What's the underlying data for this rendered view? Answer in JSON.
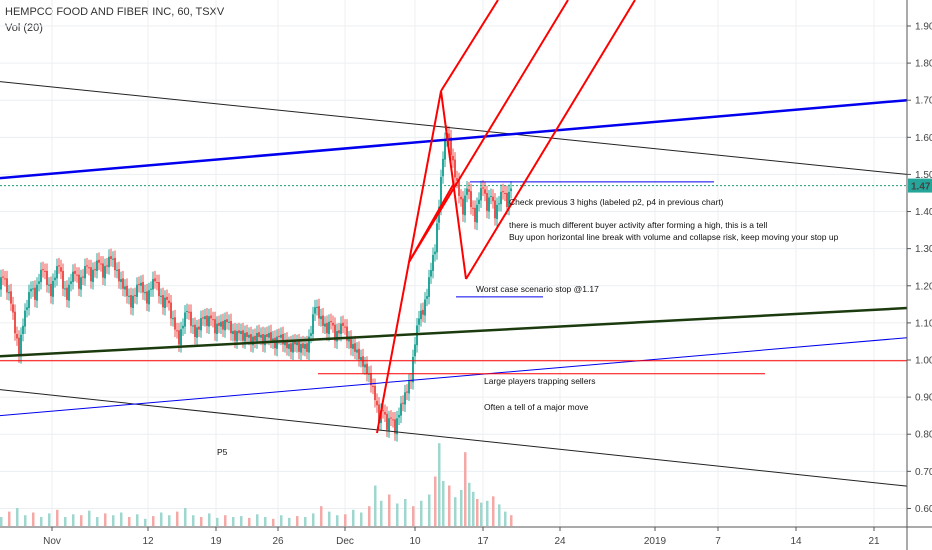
{
  "header": {
    "symbol_line": "HEMPCO FOOD AND FIBER INC, 60, TSXV",
    "indicator_line": "Vol (20)"
  },
  "chart_data": {
    "type": "candlestick",
    "ylim": [
      0.55,
      1.97
    ],
    "y_ticks": [
      "1.90",
      "1.80",
      "1.70",
      "1.60",
      "1.50",
      "1.40",
      "1.30",
      "1.20",
      "1.10",
      "1.00",
      "0.90",
      "0.80",
      "0.70",
      "0.60"
    ],
    "y_tick_values": [
      1.9,
      1.8,
      1.7,
      1.6,
      1.5,
      1.4,
      1.3,
      1.2,
      1.1,
      1.0,
      0.9,
      0.8,
      0.7,
      0.6
    ],
    "x_ticks": [
      "Nov",
      "12",
      "19",
      "26",
      "Dec",
      "10",
      "17",
      "24",
      "2019",
      "7",
      "14",
      "21"
    ],
    "last_price": "1.47",
    "last_price_value": 1.47,
    "price_path": [
      [
        0,
        1.2
      ],
      [
        4,
        1.23
      ],
      [
        8,
        1.19
      ],
      [
        12,
        1.16
      ],
      [
        16,
        1.08
      ],
      [
        20,
        1.02
      ],
      [
        24,
        1.1
      ],
      [
        28,
        1.15
      ],
      [
        32,
        1.2
      ],
      [
        36,
        1.17
      ],
      [
        40,
        1.22
      ],
      [
        44,
        1.25
      ],
      [
        48,
        1.21
      ],
      [
        52,
        1.18
      ],
      [
        56,
        1.23
      ],
      [
        60,
        1.26
      ],
      [
        64,
        1.2
      ],
      [
        68,
        1.17
      ],
      [
        72,
        1.22
      ],
      [
        76,
        1.24
      ],
      [
        80,
        1.2
      ],
      [
        84,
        1.23
      ],
      [
        88,
        1.26
      ],
      [
        92,
        1.22
      ],
      [
        96,
        1.25
      ],
      [
        100,
        1.27
      ],
      [
        104,
        1.23
      ],
      [
        108,
        1.26
      ],
      [
        112,
        1.28
      ],
      [
        116,
        1.25
      ],
      [
        120,
        1.22
      ],
      [
        124,
        1.2
      ],
      [
        128,
        1.18
      ],
      [
        132,
        1.15
      ],
      [
        136,
        1.18
      ],
      [
        140,
        1.21
      ],
      [
        144,
        1.19
      ],
      [
        148,
        1.16
      ],
      [
        152,
        1.2
      ],
      [
        156,
        1.22
      ],
      [
        160,
        1.18
      ],
      [
        164,
        1.15
      ],
      [
        168,
        1.17
      ],
      [
        172,
        1.12
      ],
      [
        176,
        1.09
      ],
      [
        180,
        1.05
      ],
      [
        184,
        1.1
      ],
      [
        188,
        1.14
      ],
      [
        192,
        1.1
      ],
      [
        196,
        1.07
      ],
      [
        200,
        1.09
      ],
      [
        204,
        1.12
      ],
      [
        208,
        1.1
      ],
      [
        212,
        1.12
      ],
      [
        216,
        1.08
      ],
      [
        220,
        1.1
      ],
      [
        224,
        1.09
      ],
      [
        228,
        1.11
      ],
      [
        232,
        1.08
      ],
      [
        236,
        1.06
      ],
      [
        240,
        1.08
      ],
      [
        244,
        1.06
      ],
      [
        248,
        1.07
      ],
      [
        252,
        1.05
      ],
      [
        256,
        1.06
      ],
      [
        260,
        1.07
      ],
      [
        264,
        1.05
      ],
      [
        268,
        1.07
      ],
      [
        272,
        1.06
      ],
      [
        276,
        1.04
      ],
      [
        280,
        1.07
      ],
      [
        284,
        1.05
      ],
      [
        288,
        1.04
      ],
      [
        292,
        1.03
      ],
      [
        296,
        1.05
      ],
      [
        300,
        1.03
      ],
      [
        304,
        1.04
      ],
      [
        308,
        1.03
      ],
      [
        312,
        1.08
      ],
      [
        316,
        1.15
      ],
      [
        320,
        1.12
      ],
      [
        324,
        1.1
      ],
      [
        328,
        1.08
      ],
      [
        332,
        1.11
      ],
      [
        336,
        1.06
      ],
      [
        340,
        1.08
      ],
      [
        344,
        1.1
      ],
      [
        348,
        1.06
      ],
      [
        352,
        1.04
      ],
      [
        356,
        1.03
      ],
      [
        360,
        1.01
      ],
      [
        364,
        0.99
      ],
      [
        368,
        0.97
      ],
      [
        372,
        0.94
      ],
      [
        376,
        0.9
      ],
      [
        380,
        0.84
      ],
      [
        384,
        0.87
      ],
      [
        388,
        0.82
      ],
      [
        392,
        0.85
      ],
      [
        396,
        0.81
      ],
      [
        400,
        0.86
      ],
      [
        404,
        0.89
      ],
      [
        408,
        0.92
      ],
      [
        412,
        0.95
      ],
      [
        416,
        1.05
      ],
      [
        420,
        1.12
      ],
      [
        424,
        1.13
      ],
      [
        428,
        1.18
      ],
      [
        432,
        1.25
      ],
      [
        436,
        1.3
      ],
      [
        440,
        1.42
      ],
      [
        444,
        1.55
      ],
      [
        448,
        1.62
      ],
      [
        452,
        1.56
      ],
      [
        456,
        1.5
      ],
      [
        460,
        1.45
      ],
      [
        464,
        1.4
      ],
      [
        468,
        1.47
      ],
      [
        472,
        1.42
      ],
      [
        476,
        1.38
      ],
      [
        480,
        1.44
      ],
      [
        484,
        1.47
      ],
      [
        488,
        1.41
      ],
      [
        492,
        1.45
      ],
      [
        496,
        1.39
      ],
      [
        500,
        1.43
      ],
      [
        504,
        1.46
      ],
      [
        508,
        1.42
      ],
      [
        512,
        1.47
      ]
    ],
    "volume_bars": [
      [
        0,
        0.1
      ],
      [
        8,
        0.16
      ],
      [
        16,
        0.2
      ],
      [
        24,
        0.12
      ],
      [
        32,
        0.15
      ],
      [
        40,
        0.1
      ],
      [
        48,
        0.14
      ],
      [
        56,
        0.18
      ],
      [
        64,
        0.1
      ],
      [
        72,
        0.13
      ],
      [
        80,
        0.12
      ],
      [
        88,
        0.17
      ],
      [
        96,
        0.1
      ],
      [
        104,
        0.14
      ],
      [
        112,
        0.12
      ],
      [
        120,
        0.15
      ],
      [
        128,
        0.1
      ],
      [
        136,
        0.13
      ],
      [
        144,
        0.08
      ],
      [
        152,
        0.11
      ],
      [
        160,
        0.15
      ],
      [
        168,
        0.12
      ],
      [
        176,
        0.16
      ],
      [
        184,
        0.2
      ],
      [
        192,
        0.12
      ],
      [
        200,
        0.1
      ],
      [
        208,
        0.14
      ],
      [
        216,
        0.09
      ],
      [
        224,
        0.12
      ],
      [
        232,
        0.1
      ],
      [
        240,
        0.11
      ],
      [
        248,
        0.09
      ],
      [
        256,
        0.13
      ],
      [
        264,
        0.1
      ],
      [
        272,
        0.08
      ],
      [
        280,
        0.12
      ],
      [
        288,
        0.09
      ],
      [
        296,
        0.11
      ],
      [
        304,
        0.1
      ],
      [
        312,
        0.14
      ],
      [
        320,
        0.22
      ],
      [
        328,
        0.16
      ],
      [
        336,
        0.12
      ],
      [
        344,
        0.13
      ],
      [
        352,
        0.18
      ],
      [
        360,
        0.15
      ],
      [
        368,
        0.22
      ],
      [
        374,
        0.45
      ],
      [
        380,
        0.28
      ],
      [
        388,
        0.35
      ],
      [
        396,
        0.25
      ],
      [
        404,
        0.3
      ],
      [
        412,
        0.22
      ],
      [
        420,
        0.28
      ],
      [
        428,
        0.35
      ],
      [
        434,
        0.55
      ],
      [
        438,
        0.92
      ],
      [
        442,
        0.5
      ],
      [
        448,
        0.45
      ],
      [
        454,
        0.32
      ],
      [
        460,
        0.4
      ],
      [
        464,
        0.82
      ],
      [
        468,
        0.48
      ],
      [
        472,
        0.38
      ],
      [
        476,
        0.3
      ],
      [
        480,
        0.26
      ],
      [
        486,
        0.28
      ],
      [
        492,
        0.33
      ],
      [
        498,
        0.24
      ],
      [
        504,
        0.16
      ],
      [
        510,
        0.12
      ]
    ],
    "drawings": {
      "thick_blue_trend": {
        "y_start": 1.49,
        "y_end": 1.7
      },
      "thin_blue_trend": {
        "y_start": 0.85,
        "y_end": 1.06
      },
      "black_top_trend": {
        "y_start": 1.75,
        "y_end": 1.5
      },
      "black_bottom_trend": {
        "y_start": 0.92,
        "y_end": 0.66
      },
      "dark_green_trend": {
        "y_start": 1.01,
        "y_end": 1.14
      },
      "red_horizontal_level": 0.998,
      "red_short_level": 0.963,
      "blue_short_level": 1.17,
      "blue_top_level": 1.48,
      "green_dotted_level": 1.47
    },
    "annotations": {
      "note_1": "Check previous 3 highs (labeled p2, p4 in previous chart)",
      "note_2": "there is much different buyer activity after forming a high, this is a tell",
      "note_3": "Buy upon horizontal line break with volume and collapse risk, keep moving your stop up",
      "note_4": "Worst case scenario stop @1.17",
      "note_5": "Large players trapping sellers",
      "note_6": "Often a tell of a major move",
      "note_7": "P5"
    },
    "colors": {
      "up": "#26a69a",
      "down": "#ef5350",
      "red_lines": "#ff0000",
      "blue_line": "#0000ee",
      "dark_green": "#1b3b0e",
      "black_line": "#222222",
      "price_label_bg": "#26a69a"
    }
  }
}
